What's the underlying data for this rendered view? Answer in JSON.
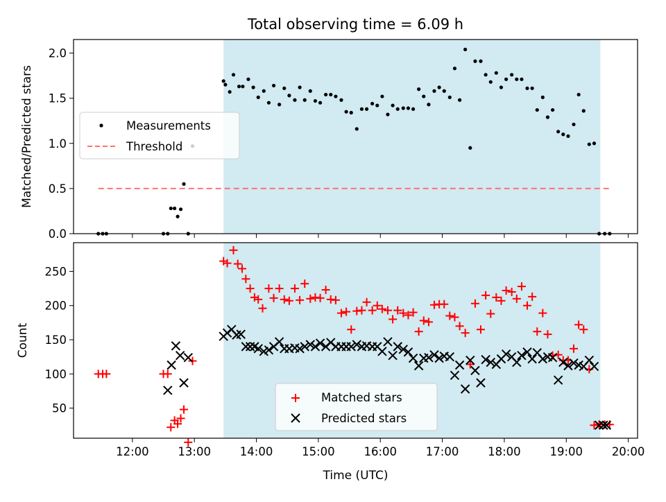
{
  "figure": {
    "title": "Total observing time = 6.09 h",
    "xlabel": "Time (UTC)",
    "xticks": [
      "12:00",
      "13:00",
      "14:00",
      "15:00",
      "16:00",
      "17:00",
      "18:00",
      "19:00",
      "20:00"
    ],
    "xtick_hours": [
      12,
      13,
      14,
      15,
      16,
      17,
      18,
      19,
      20
    ],
    "xlim_hours": [
      11.05,
      20.15
    ],
    "shaded_span_hours": [
      13.47,
      19.55
    ],
    "shade_color": "#add8e6"
  },
  "chart_data": [
    {
      "type": "scatter",
      "ylabel": "Matched/Predicted stars",
      "ylim": [
        0,
        2.15
      ],
      "yticks": [
        "0.0",
        "0.5",
        "1.0",
        "1.5",
        "2.0"
      ],
      "ytick_values": [
        0,
        0.5,
        1.0,
        1.5,
        2.0
      ],
      "legend": {
        "placement": "center-left",
        "entries": [
          "Measurements",
          "Threshold"
        ]
      },
      "threshold": {
        "name": "Threshold",
        "value": 0.5,
        "x_range_hours": [
          11.45,
          19.73
        ],
        "color": "#ff6666"
      },
      "series": [
        {
          "name": "Measurements",
          "color": "#000000",
          "x_hours": [
            11.45,
            11.52,
            11.58,
            12.5,
            12.57,
            12.62,
            12.68,
            12.73,
            12.78,
            12.83,
            12.9,
            12.97,
            13.47,
            13.5,
            13.57,
            13.63,
            13.72,
            13.78,
            13.87,
            13.95,
            14.03,
            14.12,
            14.2,
            14.28,
            14.37,
            14.45,
            14.53,
            14.62,
            14.7,
            14.78,
            14.87,
            14.95,
            15.03,
            15.12,
            15.2,
            15.28,
            15.37,
            15.45,
            15.53,
            15.62,
            15.7,
            15.78,
            15.87,
            15.95,
            16.03,
            16.12,
            16.2,
            16.28,
            16.37,
            16.45,
            16.53,
            16.62,
            16.7,
            16.78,
            16.87,
            16.95,
            17.03,
            17.12,
            17.2,
            17.28,
            17.37,
            17.45,
            17.53,
            17.62,
            17.7,
            17.78,
            17.87,
            17.95,
            18.03,
            18.12,
            18.2,
            18.28,
            18.37,
            18.45,
            18.53,
            18.62,
            18.7,
            18.78,
            18.87,
            18.95,
            19.03,
            19.12,
            19.2,
            19.28,
            19.37,
            19.45,
            19.53,
            19.62,
            19.7
          ],
          "y": [
            0,
            0,
            0,
            0,
            0,
            0.28,
            0.28,
            0.19,
            0.27,
            0.55,
            0,
            0.97,
            1.69,
            1.65,
            1.57,
            1.76,
            1.63,
            1.63,
            1.71,
            1.62,
            1.51,
            1.58,
            1.45,
            1.64,
            1.43,
            1.61,
            1.53,
            1.48,
            1.62,
            1.48,
            1.58,
            1.47,
            1.45,
            1.54,
            1.54,
            1.52,
            1.48,
            1.35,
            1.34,
            1.16,
            1.38,
            1.38,
            1.44,
            1.42,
            1.52,
            1.32,
            1.42,
            1.38,
            1.39,
            1.39,
            1.38,
            1.6,
            1.52,
            1.43,
            1.58,
            1.62,
            1.58,
            1.51,
            1.83,
            1.48,
            2.04,
            0.95,
            1.91,
            1.91,
            1.76,
            1.68,
            1.78,
            1.62,
            1.71,
            1.76,
            1.71,
            1.71,
            1.61,
            1.61,
            1.37,
            1.51,
            1.29,
            1.37,
            1.13,
            1.1,
            1.08,
            1.21,
            1.54,
            1.36,
            0.99,
            1.0,
            0,
            0,
            0
          ]
        }
      ]
    },
    {
      "type": "scatter",
      "ylabel": "Count",
      "ylim": [
        6,
        292
      ],
      "yticks": [
        "50",
        "100",
        "150",
        "200",
        "250"
      ],
      "ytick_values": [
        50,
        100,
        150,
        200,
        250
      ],
      "legend": {
        "placement": "lower-center",
        "entries": [
          "Matched stars",
          "Predicted stars"
        ]
      },
      "series": [
        {
          "name": "Matched stars",
          "marker": "plus",
          "color": "#ff0000",
          "x_hours": [
            11.45,
            11.52,
            11.58,
            12.5,
            12.57,
            12.62,
            12.68,
            12.73,
            12.78,
            12.83,
            12.9,
            12.97,
            13.47,
            13.53,
            13.63,
            13.7,
            13.77,
            13.83,
            13.9,
            13.97,
            14.03,
            14.1,
            14.2,
            14.28,
            14.37,
            14.45,
            14.53,
            14.62,
            14.7,
            14.78,
            14.87,
            14.95,
            15.03,
            15.12,
            15.2,
            15.28,
            15.37,
            15.45,
            15.53,
            15.62,
            15.7,
            15.78,
            15.87,
            15.95,
            16.03,
            16.12,
            16.2,
            16.28,
            16.37,
            16.45,
            16.53,
            16.62,
            16.7,
            16.78,
            16.87,
            16.95,
            17.03,
            17.12,
            17.2,
            17.28,
            17.37,
            17.45,
            17.53,
            17.62,
            17.7,
            17.78,
            17.87,
            17.95,
            18.03,
            18.12,
            18.2,
            18.28,
            18.37,
            18.45,
            18.53,
            18.62,
            18.7,
            18.78,
            18.87,
            18.95,
            19.03,
            19.12,
            19.2,
            19.28,
            19.37,
            19.45,
            19.53,
            19.62,
            19.7
          ],
          "y": [
            100,
            100,
            100,
            100,
            100,
            22,
            32,
            27,
            35,
            48,
            0,
            119,
            265,
            262,
            281,
            261,
            254,
            239,
            225,
            212,
            209,
            196,
            225,
            211,
            225,
            209,
            207,
            225,
            208,
            232,
            210,
            212,
            211,
            223,
            209,
            208,
            189,
            191,
            165,
            192,
            193,
            205,
            193,
            200,
            195,
            193,
            180,
            193,
            189,
            186,
            190,
            162,
            178,
            176,
            201,
            202,
            202,
            185,
            183,
            170,
            160,
            114,
            203,
            165,
            215,
            188,
            212,
            207,
            222,
            220,
            210,
            228,
            200,
            213,
            162,
            189,
            158,
            127,
            128,
            120,
            120,
            137,
            172,
            165,
            107,
            25,
            26,
            26,
            26
          ]
        },
        {
          "name": "Predicted stars",
          "marker": "x",
          "color": "#000000",
          "x_hours": [
            12.57,
            12.63,
            12.7,
            12.77,
            12.83,
            12.9,
            13.47,
            13.53,
            13.6,
            13.68,
            13.75,
            13.83,
            13.9,
            13.97,
            14.03,
            14.12,
            14.2,
            14.28,
            14.37,
            14.45,
            14.53,
            14.62,
            14.7,
            14.78,
            14.87,
            14.95,
            15.03,
            15.12,
            15.2,
            15.28,
            15.37,
            15.45,
            15.53,
            15.62,
            15.7,
            15.78,
            15.87,
            15.95,
            16.03,
            16.12,
            16.2,
            16.28,
            16.37,
            16.45,
            16.53,
            16.62,
            16.7,
            16.78,
            16.87,
            16.95,
            17.03,
            17.12,
            17.2,
            17.28,
            17.37,
            17.45,
            17.53,
            17.62,
            17.7,
            17.78,
            17.87,
            17.95,
            18.03,
            18.12,
            18.2,
            18.28,
            18.37,
            18.45,
            18.53,
            18.62,
            18.7,
            18.78,
            18.87,
            18.95,
            19.03,
            19.12,
            19.2,
            19.28,
            19.37,
            19.45,
            19.53,
            19.6,
            19.65
          ],
          "y": [
            76,
            113,
            141,
            127,
            87,
            124,
            155,
            160,
            165,
            157,
            158,
            140,
            140,
            140,
            137,
            133,
            135,
            140,
            147,
            137,
            137,
            138,
            137,
            140,
            143,
            140,
            145,
            140,
            146,
            140,
            140,
            140,
            140,
            143,
            140,
            141,
            140,
            140,
            133,
            147,
            127,
            140,
            136,
            132,
            123,
            112,
            123,
            124,
            128,
            123,
            126,
            125,
            98,
            113,
            78,
            120,
            105,
            87,
            121,
            117,
            114,
            122,
            129,
            125,
            117,
            127,
            132,
            122,
            131,
            122,
            125,
            124,
            91,
            117,
            112,
            116,
            113,
            111,
            120,
            111,
            25,
            25,
            25
          ]
        }
      ]
    }
  ]
}
